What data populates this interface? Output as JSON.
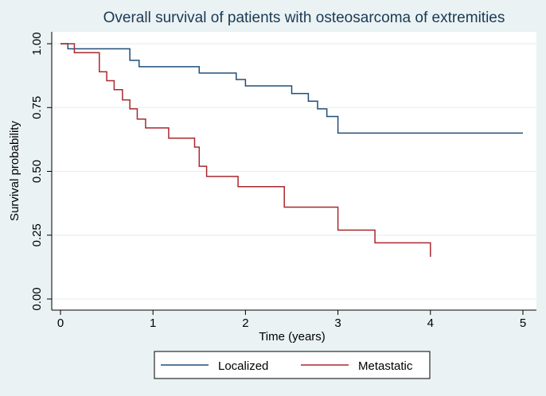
{
  "chart_data": {
    "type": "line",
    "step": true,
    "title": "Overall survival of patients with osteosarcoma of extremities",
    "xlabel": "Time (years)",
    "ylabel": "Survival probability",
    "xlim": [
      0,
      5
    ],
    "ylim": [
      0,
      1
    ],
    "xticks": [
      "0",
      "1",
      "2",
      "3",
      "4",
      "5"
    ],
    "yticks": [
      "0.00",
      "0.25",
      "0.50",
      "0.75",
      "1.00"
    ],
    "grid": true,
    "legend_position": "bottom",
    "series": [
      {
        "name": "Localized",
        "color": "#1f4e79",
        "points": [
          [
            0,
            1.0
          ],
          [
            0.08,
            0.98
          ],
          [
            0.75,
            0.935
          ],
          [
            0.85,
            0.91
          ],
          [
            1.5,
            0.885
          ],
          [
            1.9,
            0.86
          ],
          [
            2.0,
            0.835
          ],
          [
            2.5,
            0.805
          ],
          [
            2.68,
            0.775
          ],
          [
            2.78,
            0.745
          ],
          [
            2.88,
            0.715
          ],
          [
            3.0,
            0.65
          ],
          [
            5.0,
            0.65
          ]
        ]
      },
      {
        "name": "Metastatic",
        "color": "#a8282d",
        "points": [
          [
            0,
            1.0
          ],
          [
            0.15,
            0.965
          ],
          [
            0.42,
            0.89
          ],
          [
            0.5,
            0.855
          ],
          [
            0.58,
            0.82
          ],
          [
            0.67,
            0.78
          ],
          [
            0.75,
            0.745
          ],
          [
            0.83,
            0.705
          ],
          [
            0.92,
            0.67
          ],
          [
            1.17,
            0.63
          ],
          [
            1.45,
            0.595
          ],
          [
            1.5,
            0.52
          ],
          [
            1.58,
            0.48
          ],
          [
            1.92,
            0.44
          ],
          [
            2.42,
            0.36
          ],
          [
            3.0,
            0.27
          ],
          [
            3.4,
            0.22
          ],
          [
            4.0,
            0.165
          ]
        ]
      }
    ]
  }
}
